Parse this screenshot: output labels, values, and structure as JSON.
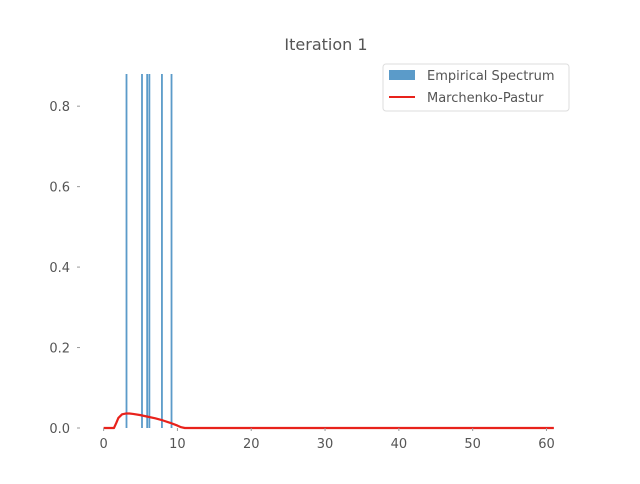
{
  "chart_data": {
    "type": "bar",
    "title": "Iteration 1",
    "xlabel": "",
    "ylabel": "",
    "xlim": [
      -3.2,
      64
    ],
    "ylim": [
      0,
      0.88
    ],
    "xticks": [
      0,
      10,
      20,
      30,
      40,
      50,
      60
    ],
    "yticks": [
      0.0,
      0.2,
      0.4,
      0.6,
      0.8
    ],
    "ytick_labels": [
      "0.0",
      "0.2",
      "0.4",
      "0.6",
      "0.8"
    ],
    "grid": false,
    "legend_position": "top-right",
    "series": [
      {
        "name": "Empirical Spectrum",
        "kind": "bar",
        "color": "#5b9bc9",
        "x": [
          3.1,
          5.2,
          5.9,
          6.2,
          7.9,
          9.2
        ],
        "values": [
          0.88,
          0.88,
          0.88,
          0.88,
          0.88,
          0.88
        ]
      },
      {
        "name": "Marchenko-Pastur",
        "kind": "line",
        "color": "#e8221b",
        "x": [
          0,
          1.4,
          1.7,
          2.0,
          2.5,
          3.0,
          3.5,
          4.0,
          5.0,
          6.0,
          7.0,
          8.0,
          9.0,
          10.0,
          10.5,
          11.0,
          61
        ],
        "y": [
          0,
          0,
          0.012,
          0.025,
          0.034,
          0.036,
          0.036,
          0.035,
          0.032,
          0.028,
          0.024,
          0.019,
          0.013,
          0.006,
          0.002,
          0,
          0
        ]
      }
    ]
  }
}
